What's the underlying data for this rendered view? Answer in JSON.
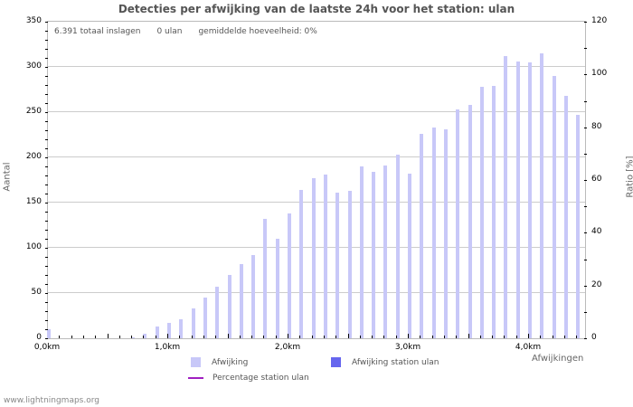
{
  "title": "Detecties per afwijking van de laatste 24h voor het station: ulan",
  "info": {
    "total": "6.391 totaal inslagen",
    "station": "0 ulan",
    "average": "gemiddelde hoeveelheid: 0%"
  },
  "axes": {
    "left_label": "Aantal",
    "right_label": "Ratio [%]",
    "x_label": "Afwijkingen",
    "left_ticks": [
      "0",
      "50",
      "100",
      "150",
      "200",
      "250",
      "300",
      "350"
    ],
    "right_ticks": [
      "0",
      "20",
      "40",
      "60",
      "80",
      "100",
      "120"
    ],
    "x_ticks": [
      "0,0km",
      "1,0km",
      "2,0km",
      "3,0km",
      "4,0km"
    ]
  },
  "legend": {
    "afwijking": "Afwijking",
    "afwijking_station": "Afwijking station ulan",
    "percentage_station": "Percentage station ulan"
  },
  "colors": {
    "bar": "#c8c8f8",
    "station_bar": "#6666ee",
    "percentage_line": "#a020c0",
    "grid": "#cccccc"
  },
  "footer": "www.lightningmaps.org",
  "chart_data": {
    "type": "bar",
    "title": "Detecties per afwijking van de laatste 24h voor het station: ulan",
    "xlabel": "Afwijkingen",
    "ylabel": "Aantal",
    "y2label": "Ratio [%]",
    "ylim": [
      0,
      350
    ],
    "y2lim": [
      0,
      120
    ],
    "grid": true,
    "legend_position": "bottom",
    "categories": [
      "0,0km",
      "0,1km",
      "0,2km",
      "0,3km",
      "0,4km",
      "0,5km",
      "0,6km",
      "0,7km",
      "0,8km",
      "0,9km",
      "1,0km",
      "1,1km",
      "1,2km",
      "1,3km",
      "1,4km",
      "1,5km",
      "1,6km",
      "1,7km",
      "1,8km",
      "1,9km",
      "2,0km",
      "2,1km",
      "2,2km",
      "2,3km",
      "2,4km",
      "2,5km",
      "2,6km",
      "2,7km",
      "2,8km",
      "2,9km",
      "3,0km",
      "3,1km",
      "3,2km",
      "3,3km",
      "3,4km",
      "3,5km",
      "3,6km",
      "3,7km",
      "3,8km",
      "3,9km",
      "4,0km",
      "4,1km",
      "4,2km",
      "4,3km",
      "4,4km"
    ],
    "series": [
      {
        "name": "Afwijking",
        "values": [
          10,
          0,
          0,
          0,
          0,
          0,
          0,
          1,
          5,
          13,
          17,
          21,
          33,
          45,
          57,
          70,
          82,
          92,
          132,
          110,
          138,
          164,
          177,
          181,
          161,
          163,
          190,
          184,
          191,
          203,
          182,
          226,
          233,
          231,
          253,
          258,
          278,
          279,
          312,
          306,
          305,
          315,
          290,
          268,
          247
        ]
      },
      {
        "name": "Afwijking station ulan",
        "values": [
          0,
          0,
          0,
          0,
          0,
          0,
          0,
          0,
          0,
          0,
          0,
          0,
          0,
          0,
          0,
          0,
          0,
          0,
          0,
          0,
          0,
          0,
          0,
          0,
          0,
          0,
          0,
          0,
          0,
          0,
          0,
          0,
          0,
          0,
          0,
          0,
          0,
          0,
          0,
          0,
          0,
          0,
          0,
          0,
          0
        ]
      },
      {
        "name": "Percentage station ulan",
        "axis": "right",
        "values": [
          0,
          0,
          0,
          0,
          0,
          0,
          0,
          0,
          0,
          0,
          0,
          0,
          0,
          0,
          0,
          0,
          0,
          0,
          0,
          0,
          0,
          0,
          0,
          0,
          0,
          0,
          0,
          0,
          0,
          0,
          0,
          0,
          0,
          0,
          0,
          0,
          0,
          0,
          0,
          0,
          0,
          0,
          0,
          0,
          0
        ]
      }
    ]
  }
}
